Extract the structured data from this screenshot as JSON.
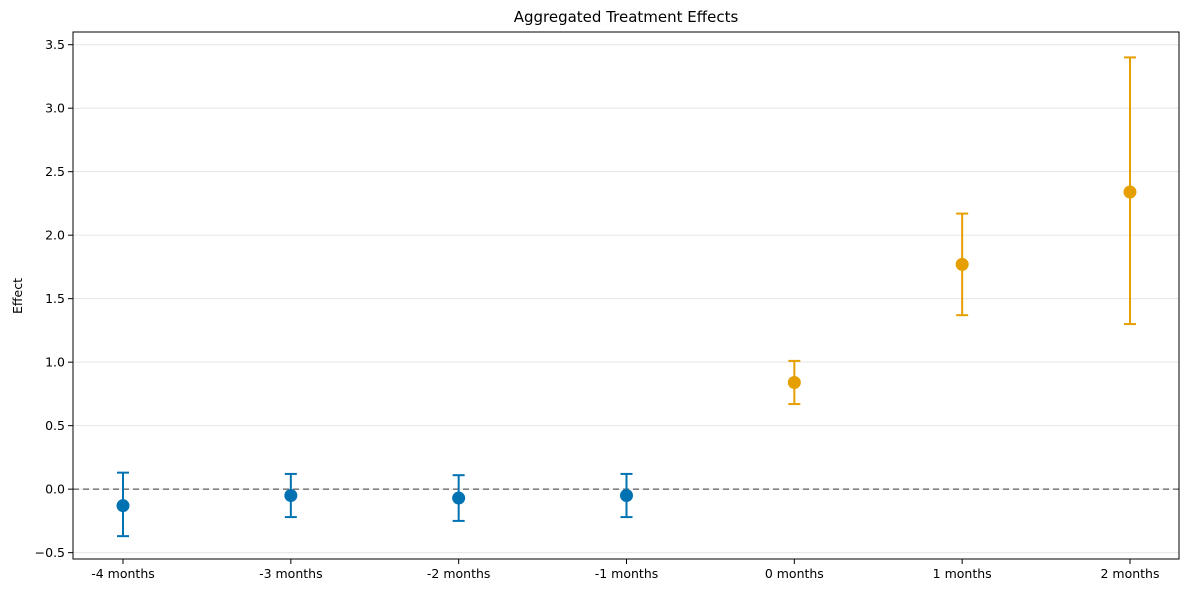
{
  "chart_data": {
    "type": "scatter",
    "title": "Aggregated Treatment Effects",
    "xlabel": "",
    "ylabel": "Effect",
    "categories": [
      "-4 months",
      "-3 months",
      "-2 months",
      "-1 months",
      "0 months",
      "1 months",
      "2 months"
    ],
    "estimates": [
      -0.13,
      -0.05,
      -0.07,
      -0.05,
      0.84,
      1.77,
      2.34
    ],
    "ci_lower": [
      -0.37,
      -0.22,
      -0.25,
      -0.22,
      0.67,
      1.37,
      1.3
    ],
    "ci_upper": [
      0.13,
      0.12,
      0.11,
      0.12,
      1.01,
      2.17,
      3.4
    ],
    "period": [
      "pre",
      "pre",
      "pre",
      "pre",
      "post",
      "post",
      "post"
    ],
    "colors": {
      "pre": "#0072b2",
      "post": "#e69f00"
    },
    "ylim": [
      -0.55,
      3.6
    ],
    "yticks": [
      -0.5,
      0.0,
      0.5,
      1.0,
      1.5,
      2.0,
      2.5,
      3.0,
      3.5
    ],
    "ytick_labels": [
      "−0.5",
      "0.0",
      "0.5",
      "1.0",
      "1.5",
      "2.0",
      "2.5",
      "3.0",
      "3.5"
    ],
    "reference_line": 0,
    "grid": "horizontal"
  }
}
